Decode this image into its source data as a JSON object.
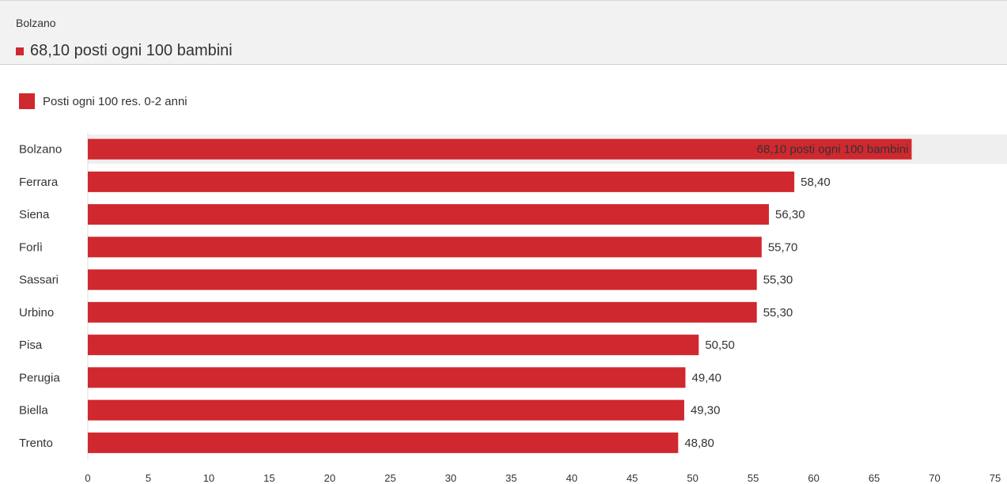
{
  "tooltip": {
    "title": "Bolzano",
    "value_text": "68,10 posti ogni 100 bambini"
  },
  "colors": {
    "bar": "#d0282f",
    "highlight_band": "#efefef",
    "grid": "#dddddd"
  },
  "chart_data": {
    "type": "bar",
    "orientation": "horizontal",
    "legend": [
      "Posti ogni 100 res. 0-2 anni"
    ],
    "legend_position": "top-left",
    "categories": [
      "Bolzano",
      "Ferrara",
      "Siena",
      "Forlì",
      "Sassari",
      "Urbino",
      "Pisa",
      "Perugia",
      "Biella",
      "Trento"
    ],
    "series": [
      {
        "name": "Posti ogni 100 res. 0-2 anni",
        "values": [
          68.1,
          58.4,
          56.3,
          55.7,
          55.3,
          55.3,
          50.5,
          49.4,
          49.3,
          48.8
        ],
        "value_labels": [
          "68,10 posti ogni 100 bambini",
          "58,40",
          "56,30",
          "55,70",
          "55,30",
          "55,30",
          "50,50",
          "49,40",
          "49,30",
          "48,80"
        ]
      }
    ],
    "highlighted_category": "Bolzano",
    "xlim": [
      0,
      75
    ],
    "x_ticks": [
      "0",
      "5",
      "10",
      "15",
      "20",
      "25",
      "30",
      "35",
      "40",
      "45",
      "50",
      "55",
      "60",
      "65",
      "70",
      "75"
    ],
    "grid": false
  }
}
